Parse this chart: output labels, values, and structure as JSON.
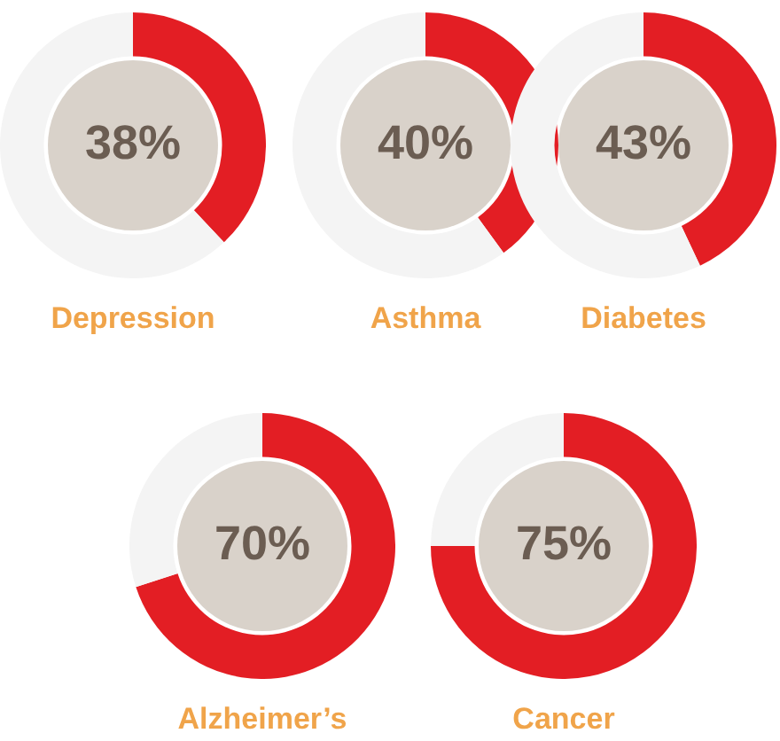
{
  "chart_data": [
    {
      "type": "donut",
      "title": "Depression",
      "categories": [
        null,
        null
      ],
      "values": [
        38,
        62
      ],
      "colors": [
        "#e31e24",
        "#f4f4f4"
      ],
      "value_labels": [
        "38%",
        null
      ]
    },
    {
      "type": "donut",
      "title": "Asthma",
      "categories": [
        null,
        null
      ],
      "values": [
        40,
        60
      ],
      "colors": [
        "#e31e24",
        "#f4f4f4"
      ],
      "value_labels": [
        "40%",
        null
      ]
    },
    {
      "type": "donut",
      "title": "Diabetes",
      "categories": [
        null,
        null
      ],
      "values": [
        43,
        57
      ],
      "colors": [
        "#e31e24",
        "#f4f4f4"
      ],
      "value_labels": [
        "43%",
        null
      ]
    },
    {
      "type": "donut",
      "title": "Alzheimer’s",
      "categories": [
        null,
        null
      ],
      "values": [
        70,
        30
      ],
      "colors": [
        "#e31e24",
        "#f4f4f4"
      ],
      "value_labels": [
        "70%",
        null
      ]
    },
    {
      "type": "donut",
      "title": "Cancer",
      "categories": [
        null,
        null
      ],
      "values": [
        75,
        25
      ],
      "colors": [
        "#e31e24",
        "#f4f4f4"
      ],
      "value_labels": [
        "75%",
        null
      ]
    }
  ]
}
